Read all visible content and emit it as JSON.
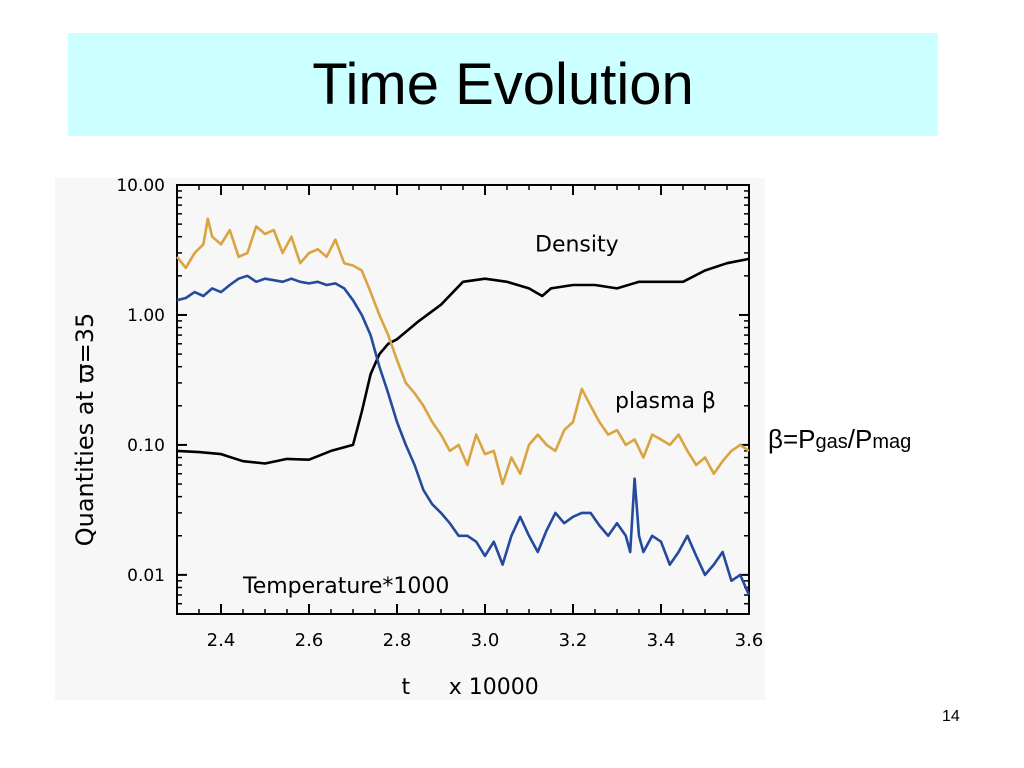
{
  "slide": {
    "title": "Time Evolution",
    "page_number": "14"
  },
  "formula": {
    "beta": "β=P",
    "gas_sub": "gas",
    "slash_p": "/P",
    "mag_sub": "mag"
  },
  "colors": {
    "title_band": "#ccffff",
    "density": "#000000",
    "plasma_beta": "#d9a441",
    "temperature": "#234a9c"
  },
  "chart_data": {
    "type": "line",
    "xlabel": "t",
    "xlabel_scale": "x 10000",
    "ylabel": "Quantities at ϖ=35",
    "xlim": [
      2.3,
      3.6
    ],
    "ylim": [
      0.005,
      10
    ],
    "yscale": "log",
    "x_ticks": [
      "2.4",
      "2.6",
      "2.8",
      "3.0",
      "3.2",
      "3.4",
      "3.6"
    ],
    "x_tick_values": [
      2.4,
      2.6,
      2.8,
      3.0,
      3.2,
      3.4,
      3.6
    ],
    "y_ticks": [
      "10.00",
      "1.00",
      "0.10",
      "0.01"
    ],
    "y_tick_values": [
      10,
      1,
      0.1,
      0.01
    ],
    "series": [
      {
        "name": "Density",
        "x": [
          2.3,
          2.35,
          2.4,
          2.45,
          2.5,
          2.55,
          2.6,
          2.65,
          2.7,
          2.72,
          2.74,
          2.76,
          2.78,
          2.8,
          2.85,
          2.9,
          2.95,
          3.0,
          3.05,
          3.1,
          3.13,
          3.15,
          3.2,
          3.25,
          3.3,
          3.35,
          3.4,
          3.45,
          3.5,
          3.55,
          3.6
        ],
        "y": [
          0.09,
          0.088,
          0.085,
          0.075,
          0.072,
          0.078,
          0.077,
          0.09,
          0.1,
          0.18,
          0.35,
          0.5,
          0.6,
          0.65,
          0.9,
          1.2,
          1.8,
          1.9,
          1.8,
          1.6,
          1.4,
          1.6,
          1.7,
          1.7,
          1.6,
          1.8,
          1.8,
          1.8,
          2.2,
          2.5,
          2.7
        ]
      },
      {
        "name": "plasma β",
        "x": [
          2.3,
          2.32,
          2.34,
          2.36,
          2.37,
          2.38,
          2.4,
          2.42,
          2.44,
          2.46,
          2.48,
          2.5,
          2.52,
          2.54,
          2.56,
          2.58,
          2.6,
          2.62,
          2.64,
          2.66,
          2.68,
          2.7,
          2.72,
          2.74,
          2.76,
          2.78,
          2.8,
          2.82,
          2.84,
          2.86,
          2.88,
          2.9,
          2.92,
          2.94,
          2.96,
          2.98,
          3.0,
          3.02,
          3.04,
          3.06,
          3.08,
          3.1,
          3.12,
          3.14,
          3.16,
          3.18,
          3.2,
          3.22,
          3.24,
          3.26,
          3.28,
          3.3,
          3.32,
          3.34,
          3.36,
          3.38,
          3.4,
          3.42,
          3.44,
          3.46,
          3.48,
          3.5,
          3.52,
          3.54,
          3.56,
          3.58,
          3.6
        ],
        "y": [
          2.8,
          2.3,
          3.0,
          3.5,
          5.5,
          4.0,
          3.5,
          4.5,
          2.8,
          3.0,
          4.8,
          4.2,
          4.5,
          3.0,
          4.0,
          2.5,
          3.0,
          3.2,
          2.8,
          3.8,
          2.5,
          2.4,
          2.2,
          1.5,
          1.0,
          0.7,
          0.45,
          0.3,
          0.25,
          0.2,
          0.15,
          0.12,
          0.09,
          0.1,
          0.07,
          0.12,
          0.085,
          0.09,
          0.05,
          0.08,
          0.06,
          0.1,
          0.12,
          0.1,
          0.09,
          0.13,
          0.15,
          0.27,
          0.2,
          0.15,
          0.12,
          0.13,
          0.1,
          0.11,
          0.08,
          0.12,
          0.11,
          0.1,
          0.12,
          0.09,
          0.07,
          0.08,
          0.06,
          0.075,
          0.09,
          0.1,
          0.09
        ]
      },
      {
        "name": "Temperature*1000",
        "x": [
          2.3,
          2.32,
          2.34,
          2.36,
          2.38,
          2.4,
          2.42,
          2.44,
          2.46,
          2.48,
          2.5,
          2.52,
          2.54,
          2.56,
          2.58,
          2.6,
          2.62,
          2.64,
          2.66,
          2.68,
          2.7,
          2.72,
          2.74,
          2.76,
          2.78,
          2.8,
          2.82,
          2.84,
          2.86,
          2.88,
          2.9,
          2.92,
          2.94,
          2.96,
          2.98,
          3.0,
          3.02,
          3.04,
          3.06,
          3.08,
          3.1,
          3.12,
          3.14,
          3.16,
          3.18,
          3.2,
          3.22,
          3.24,
          3.26,
          3.28,
          3.3,
          3.32,
          3.33,
          3.34,
          3.35,
          3.36,
          3.38,
          3.4,
          3.42,
          3.44,
          3.46,
          3.48,
          3.5,
          3.52,
          3.54,
          3.56,
          3.58,
          3.6
        ],
        "y": [
          1.3,
          1.35,
          1.5,
          1.4,
          1.6,
          1.5,
          1.7,
          1.9,
          2.0,
          1.8,
          1.9,
          1.85,
          1.8,
          1.9,
          1.8,
          1.75,
          1.8,
          1.7,
          1.75,
          1.6,
          1.3,
          1.0,
          0.7,
          0.4,
          0.25,
          0.15,
          0.1,
          0.07,
          0.045,
          0.035,
          0.03,
          0.025,
          0.02,
          0.02,
          0.018,
          0.014,
          0.018,
          0.012,
          0.02,
          0.028,
          0.02,
          0.015,
          0.022,
          0.03,
          0.025,
          0.028,
          0.03,
          0.03,
          0.024,
          0.02,
          0.025,
          0.02,
          0.015,
          0.055,
          0.02,
          0.015,
          0.02,
          0.018,
          0.012,
          0.015,
          0.02,
          0.014,
          0.01,
          0.012,
          0.015,
          0.009,
          0.01,
          0.007
        ]
      }
    ],
    "annotations": [
      "Density",
      "plasma β",
      "Temperature*1000"
    ]
  }
}
